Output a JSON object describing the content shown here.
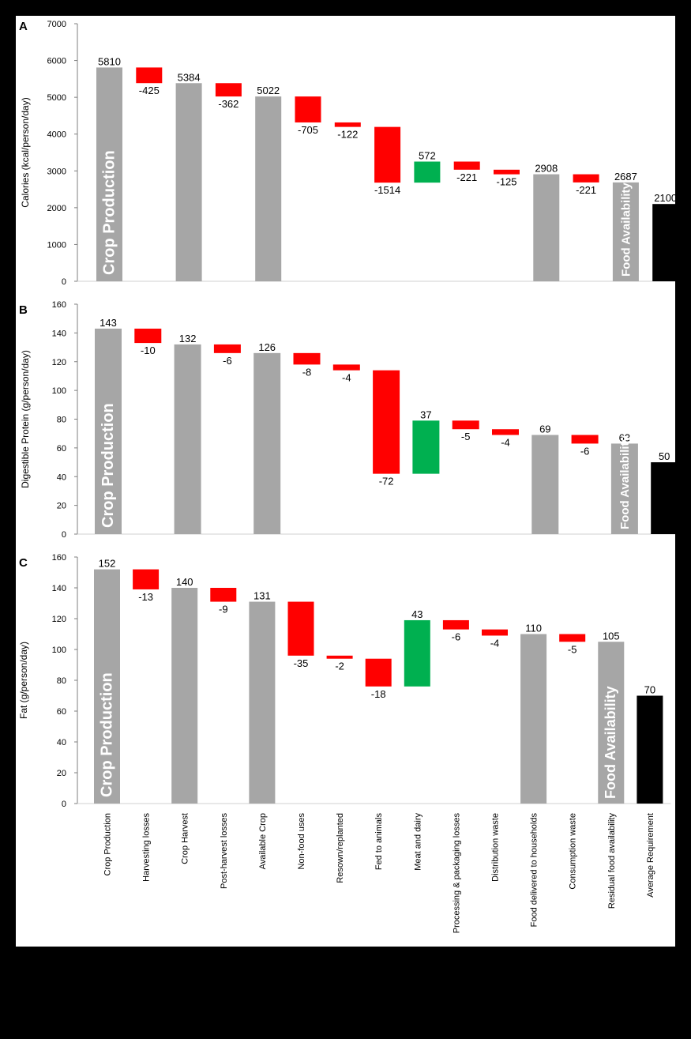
{
  "categories": [
    "Crop Production",
    "Harvesting losses",
    "Crop Harvest",
    "Post-harvest losses",
    "Available Crop",
    "Non-food uses",
    "Resown/replanted",
    "Fed to animals",
    "Meat and dairy",
    "Processing & packaging losses",
    "Distribution waste",
    "Food delivered to households",
    "Consumption waste",
    "Residual food availability",
    "Average Requirement"
  ],
  "colors": {
    "total": "#a6a6a6",
    "loss": "#ff0000",
    "gain": "#00b050",
    "requirement": "#000000"
  },
  "chart_data": [
    {
      "type": "bar",
      "panel": "A",
      "ylabel": "Calories (kcal/person/day)",
      "ylim": [
        0,
        7000
      ],
      "yticks": [
        0,
        1000,
        2000,
        3000,
        4000,
        5000,
        6000,
        7000
      ],
      "bar_labels": {
        "first": "Crop Production",
        "residual": "Food Availability"
      },
      "bars": [
        {
          "kind": "total",
          "start": 0,
          "end": 5810,
          "label": "5810"
        },
        {
          "kind": "loss",
          "start": 5810,
          "end": 5385,
          "label": "-425"
        },
        {
          "kind": "total",
          "start": 0,
          "end": 5384,
          "label": "5384"
        },
        {
          "kind": "loss",
          "start": 5384,
          "end": 5022,
          "label": "-362"
        },
        {
          "kind": "total",
          "start": 0,
          "end": 5022,
          "label": "5022"
        },
        {
          "kind": "loss",
          "start": 5022,
          "end": 4317,
          "label": "-705"
        },
        {
          "kind": "loss",
          "start": 4317,
          "end": 4195,
          "label": "-122"
        },
        {
          "kind": "loss",
          "start": 4195,
          "end": 2681,
          "label": "-1514"
        },
        {
          "kind": "gain",
          "start": 2681,
          "end": 3253,
          "label": "572"
        },
        {
          "kind": "loss",
          "start": 3253,
          "end": 3032,
          "label": "-221"
        },
        {
          "kind": "loss",
          "start": 3032,
          "end": 2907,
          "label": "-125"
        },
        {
          "kind": "total",
          "start": 0,
          "end": 2908,
          "label": "2908"
        },
        {
          "kind": "loss",
          "start": 2908,
          "end": 2687,
          "label": "-221"
        },
        {
          "kind": "total",
          "start": 0,
          "end": 2687,
          "label": "2687"
        },
        {
          "kind": "requirement",
          "start": 0,
          "end": 2100,
          "label": "2100"
        }
      ]
    },
    {
      "type": "bar",
      "panel": "B",
      "ylabel": "Digestible Protein (g/person/day)",
      "ylim": [
        0,
        160
      ],
      "yticks": [
        0,
        20,
        40,
        60,
        80,
        100,
        120,
        140,
        160
      ],
      "bar_labels": {
        "first": "Crop Production",
        "residual": "Food Availability"
      },
      "bars": [
        {
          "kind": "total",
          "start": 0,
          "end": 143,
          "label": "143"
        },
        {
          "kind": "loss",
          "start": 143,
          "end": 133,
          "label": "-10"
        },
        {
          "kind": "total",
          "start": 0,
          "end": 132,
          "label": "132"
        },
        {
          "kind": "loss",
          "start": 132,
          "end": 126,
          "label": "-6"
        },
        {
          "kind": "total",
          "start": 0,
          "end": 126,
          "label": "126"
        },
        {
          "kind": "loss",
          "start": 126,
          "end": 118,
          "label": "-8"
        },
        {
          "kind": "loss",
          "start": 118,
          "end": 114,
          "label": "-4"
        },
        {
          "kind": "loss",
          "start": 114,
          "end": 42,
          "label": "-72"
        },
        {
          "kind": "gain",
          "start": 42,
          "end": 79,
          "label": "37"
        },
        {
          "kind": "loss",
          "start": 79,
          "end": 73,
          "label": "-5"
        },
        {
          "kind": "loss",
          "start": 73,
          "end": 69,
          "label": "-4"
        },
        {
          "kind": "total",
          "start": 0,
          "end": 69,
          "label": "69"
        },
        {
          "kind": "loss",
          "start": 69,
          "end": 63,
          "label": "-6"
        },
        {
          "kind": "total",
          "start": 0,
          "end": 63,
          "label": "63"
        },
        {
          "kind": "requirement",
          "start": 0,
          "end": 50,
          "label": "50"
        }
      ]
    },
    {
      "type": "bar",
      "panel": "C",
      "ylabel": "Fat (g/person/day)",
      "ylim": [
        0,
        160
      ],
      "yticks": [
        0,
        20,
        40,
        60,
        80,
        100,
        120,
        140,
        160
      ],
      "bar_labels": {
        "first": "Crop Production",
        "residual": "Food Availability"
      },
      "bars": [
        {
          "kind": "total",
          "start": 0,
          "end": 152,
          "label": "152"
        },
        {
          "kind": "loss",
          "start": 152,
          "end": 139,
          "label": "-13"
        },
        {
          "kind": "total",
          "start": 0,
          "end": 140,
          "label": "140"
        },
        {
          "kind": "loss",
          "start": 140,
          "end": 131,
          "label": "-9"
        },
        {
          "kind": "total",
          "start": 0,
          "end": 131,
          "label": "131"
        },
        {
          "kind": "loss",
          "start": 131,
          "end": 96,
          "label": "-35"
        },
        {
          "kind": "loss",
          "start": 96,
          "end": 94,
          "label": "-2"
        },
        {
          "kind": "loss",
          "start": 94,
          "end": 76,
          "label": "-18"
        },
        {
          "kind": "gain",
          "start": 76,
          "end": 119,
          "label": "43"
        },
        {
          "kind": "loss",
          "start": 119,
          "end": 113,
          "label": "-6"
        },
        {
          "kind": "loss",
          "start": 113,
          "end": 109,
          "label": "-4"
        },
        {
          "kind": "total",
          "start": 0,
          "end": 110,
          "label": "110"
        },
        {
          "kind": "loss",
          "start": 110,
          "end": 105,
          "label": "-5"
        },
        {
          "kind": "total",
          "start": 0,
          "end": 105,
          "label": "105"
        },
        {
          "kind": "requirement",
          "start": 0,
          "end": 70,
          "label": "70"
        }
      ]
    }
  ]
}
